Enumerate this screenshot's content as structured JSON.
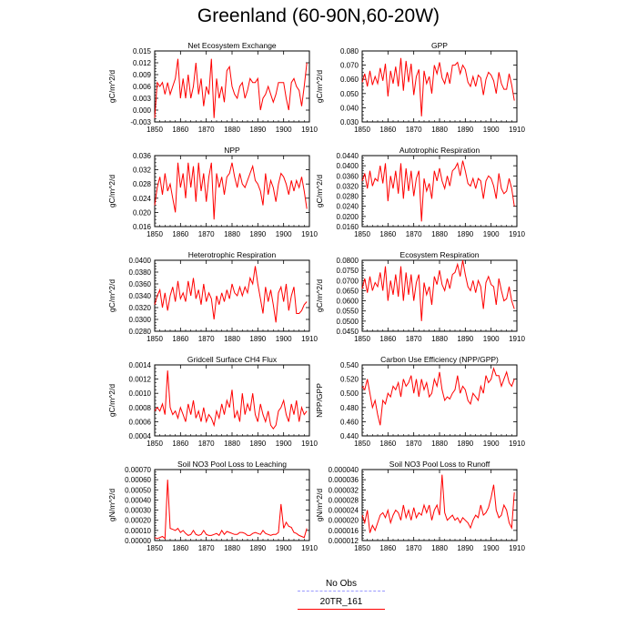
{
  "page": {
    "title": "Greenland (60-90N,60-20W)"
  },
  "legend": {
    "items": [
      {
        "label": "No Obs",
        "color": "#9999ff",
        "style": "dashed"
      },
      {
        "label": "20TR_161",
        "color": "#ff0000",
        "style": "solid"
      }
    ]
  },
  "chart_data": [
    {
      "type": "line",
      "title": "Net Ecosystem Exchange",
      "ylabel": "gC/m^2/d",
      "xlabel": "",
      "xlim": [
        1850,
        1910
      ],
      "ylim": [
        -0.003,
        0.015
      ],
      "grid": false,
      "yticks": [
        "-0.003",
        "0.000",
        "0.003",
        "0.006",
        "0.009",
        "0.012",
        "0.015"
      ],
      "xticks": [
        "1850",
        "1860",
        "1870",
        "1880",
        "1890",
        "1900",
        "1910"
      ],
      "series": [
        {
          "color": "#ff0000",
          "x_start": 1850,
          "x_step": 1,
          "values": [
            -0.002,
            0.007,
            0.006,
            0.007,
            0.004,
            0.007,
            0.004,
            0.006,
            0.008,
            0.013,
            0.003,
            0.008,
            0.003,
            0.009,
            0.003,
            0.006,
            0.012,
            0.004,
            0.008,
            0.001,
            0.006,
            0.004,
            0.013,
            -0.002,
            0.008,
            0.003,
            0.006,
            0.002,
            0.01,
            0.011,
            0.006,
            0.004,
            0.003,
            0.006,
            0.007,
            0.003,
            0.005,
            0.008,
            0.007,
            0.007,
            0.008,
            0.0,
            0.003,
            0.004,
            0.006,
            0.004,
            0.002,
            0.004,
            0.007,
            0.007,
            0.007,
            0.003,
            0.0,
            0.007,
            0.008,
            0.006,
            0.005,
            0.001,
            0.006,
            0.012
          ]
        }
      ]
    },
    {
      "type": "line",
      "title": "GPP",
      "ylabel": "gC/m^2/d",
      "xlabel": "",
      "xlim": [
        1850,
        1910
      ],
      "ylim": [
        0.03,
        0.08
      ],
      "grid": false,
      "yticks": [
        "0.030",
        "0.040",
        "0.050",
        "0.060",
        "0.070",
        "0.080"
      ],
      "xticks": [
        "1850",
        "1860",
        "1870",
        "1880",
        "1890",
        "1900",
        "1910"
      ],
      "series": [
        {
          "color": "#ff0000",
          "x_start": 1850,
          "x_step": 1,
          "values": [
            0.058,
            0.064,
            0.055,
            0.066,
            0.056,
            0.062,
            0.057,
            0.068,
            0.059,
            0.071,
            0.048,
            0.066,
            0.057,
            0.069,
            0.055,
            0.075,
            0.052,
            0.073,
            0.058,
            0.071,
            0.049,
            0.062,
            0.067,
            0.034,
            0.066,
            0.057,
            0.062,
            0.05,
            0.07,
            0.064,
            0.072,
            0.061,
            0.057,
            0.065,
            0.057,
            0.07,
            0.07,
            0.072,
            0.064,
            0.07,
            0.067,
            0.058,
            0.055,
            0.062,
            0.055,
            0.063,
            0.061,
            0.049,
            0.06,
            0.065,
            0.063,
            0.059,
            0.05,
            0.065,
            0.057,
            0.053,
            0.053,
            0.064,
            0.056,
            0.045
          ]
        }
      ]
    },
    {
      "type": "line",
      "title": "NPP",
      "ylabel": "gC/m^2/d",
      "xlabel": "",
      "xlim": [
        1850,
        1910
      ],
      "ylim": [
        0.016,
        0.036
      ],
      "grid": false,
      "yticks": [
        "0.016",
        "0.020",
        "0.024",
        "0.028",
        "0.032",
        "0.036"
      ],
      "xticks": [
        "1850",
        "1860",
        "1870",
        "1880",
        "1890",
        "1900",
        "1910"
      ],
      "series": [
        {
          "color": "#ff0000",
          "x_start": 1850,
          "x_step": 1,
          "values": [
            0.022,
            0.027,
            0.03,
            0.025,
            0.031,
            0.026,
            0.028,
            0.024,
            0.02,
            0.034,
            0.027,
            0.031,
            0.024,
            0.034,
            0.027,
            0.033,
            0.023,
            0.034,
            0.026,
            0.031,
            0.023,
            0.03,
            0.034,
            0.018,
            0.031,
            0.027,
            0.03,
            0.025,
            0.03,
            0.031,
            0.034,
            0.03,
            0.027,
            0.031,
            0.028,
            0.027,
            0.029,
            0.031,
            0.033,
            0.029,
            0.028,
            0.026,
            0.022,
            0.031,
            0.025,
            0.029,
            0.027,
            0.023,
            0.028,
            0.031,
            0.03,
            0.028,
            0.025,
            0.029,
            0.026,
            0.029,
            0.027,
            0.03,
            0.026,
            0.021
          ]
        }
      ]
    },
    {
      "type": "line",
      "title": "Autotrophic Respiration",
      "ylabel": "gC/m^2/d",
      "xlabel": "",
      "xlim": [
        1850,
        1910
      ],
      "ylim": [
        0.016,
        0.044
      ],
      "grid": false,
      "yticks": [
        "0.0160",
        "0.0200",
        "0.0240",
        "0.0280",
        "0.0320",
        "0.0360",
        "0.0400",
        "0.0440"
      ],
      "xticks": [
        "1850",
        "1860",
        "1870",
        "1880",
        "1890",
        "1900",
        "1910"
      ],
      "series": [
        {
          "color": "#ff0000",
          "x_start": 1850,
          "x_step": 1,
          "values": [
            0.034,
            0.037,
            0.031,
            0.038,
            0.032,
            0.035,
            0.034,
            0.04,
            0.033,
            0.041,
            0.026,
            0.036,
            0.031,
            0.038,
            0.029,
            0.041,
            0.027,
            0.039,
            0.03,
            0.038,
            0.028,
            0.035,
            0.038,
            0.018,
            0.035,
            0.03,
            0.033,
            0.027,
            0.038,
            0.034,
            0.039,
            0.034,
            0.031,
            0.036,
            0.032,
            0.038,
            0.039,
            0.041,
            0.036,
            0.042,
            0.038,
            0.033,
            0.032,
            0.035,
            0.031,
            0.035,
            0.034,
            0.027,
            0.034,
            0.036,
            0.035,
            0.032,
            0.027,
            0.037,
            0.031,
            0.029,
            0.03,
            0.035,
            0.031,
            0.024
          ]
        }
      ]
    },
    {
      "type": "line",
      "title": "Heterotrophic Respiration",
      "ylabel": "gC/m^2/d",
      "xlabel": "",
      "xlim": [
        1850,
        1910
      ],
      "ylim": [
        0.028,
        0.04
      ],
      "grid": false,
      "yticks": [
        "0.0280",
        "0.0300",
        "0.0320",
        "0.0340",
        "0.0360",
        "0.0380",
        "0.0400"
      ],
      "xticks": [
        "1850",
        "1860",
        "1870",
        "1880",
        "1890",
        "1900",
        "1910"
      ],
      "series": [
        {
          "color": "#ff0000",
          "x_start": 1850,
          "x_step": 1,
          "values": [
            0.0325,
            0.034,
            0.035,
            0.032,
            0.0345,
            0.0315,
            0.034,
            0.0355,
            0.033,
            0.0365,
            0.0335,
            0.0345,
            0.033,
            0.0365,
            0.034,
            0.037,
            0.0335,
            0.035,
            0.0325,
            0.036,
            0.033,
            0.0345,
            0.0335,
            0.03,
            0.034,
            0.0325,
            0.0345,
            0.033,
            0.035,
            0.0335,
            0.036,
            0.0345,
            0.034,
            0.0355,
            0.034,
            0.0355,
            0.0345,
            0.037,
            0.036,
            0.039,
            0.036,
            0.0335,
            0.031,
            0.0355,
            0.033,
            0.035,
            0.0325,
            0.0295,
            0.0345,
            0.0355,
            0.033,
            0.036,
            0.0315,
            0.034,
            0.0355,
            0.031,
            0.031,
            0.0315,
            0.0325,
            0.033
          ]
        }
      ]
    },
    {
      "type": "line",
      "title": "Ecosystem Respiration",
      "ylabel": "gC/m^2/d",
      "xlabel": "",
      "xlim": [
        1850,
        1910
      ],
      "ylim": [
        0.045,
        0.08
      ],
      "grid": false,
      "yticks": [
        "0.0450",
        "0.0500",
        "0.0550",
        "0.0600",
        "0.0650",
        "0.0700",
        "0.0750",
        "0.0800"
      ],
      "xticks": [
        "1850",
        "1860",
        "1870",
        "1880",
        "1890",
        "1900",
        "1910"
      ],
      "series": [
        {
          "color": "#ff0000",
          "x_start": 1850,
          "x_step": 1,
          "values": [
            0.066,
            0.071,
            0.064,
            0.072,
            0.065,
            0.069,
            0.067,
            0.074,
            0.065,
            0.077,
            0.06,
            0.07,
            0.063,
            0.073,
            0.062,
            0.077,
            0.06,
            0.074,
            0.063,
            0.073,
            0.06,
            0.069,
            0.073,
            0.05,
            0.069,
            0.063,
            0.067,
            0.058,
            0.072,
            0.068,
            0.075,
            0.068,
            0.065,
            0.071,
            0.066,
            0.073,
            0.074,
            0.078,
            0.072,
            0.08,
            0.073,
            0.067,
            0.065,
            0.07,
            0.064,
            0.07,
            0.067,
            0.056,
            0.069,
            0.072,
            0.068,
            0.067,
            0.058,
            0.071,
            0.065,
            0.06,
            0.061,
            0.067,
            0.06,
            0.056
          ]
        }
      ]
    },
    {
      "type": "line",
      "title": "Gridcell Surface CH4 Flux",
      "ylabel": "gC/m^2/d",
      "xlabel": "",
      "xlim": [
        1850,
        1910
      ],
      "ylim": [
        0.0004,
        0.0014
      ],
      "grid": false,
      "yticks": [
        "0.0004",
        "0.0006",
        "0.0008",
        "0.0010",
        "0.0012",
        "0.0014"
      ],
      "xticks": [
        "1850",
        "1860",
        "1870",
        "1880",
        "1890",
        "1900",
        "1910"
      ],
      "series": [
        {
          "color": "#ff0000",
          "x_start": 1850,
          "x_step": 1,
          "values": [
            0.00075,
            0.0008,
            0.00075,
            0.00085,
            0.0007,
            0.00132,
            0.0008,
            0.0007,
            0.00075,
            0.00065,
            0.0008,
            0.0007,
            0.0006,
            0.00085,
            0.0007,
            0.0009,
            0.00065,
            0.00075,
            0.0006,
            0.0008,
            0.0006,
            0.0007,
            0.00065,
            0.00055,
            0.00075,
            0.00065,
            0.00085,
            0.0007,
            0.0009,
            0.0008,
            0.00105,
            0.00065,
            0.00075,
            0.0006,
            0.001,
            0.0007,
            0.00085,
            0.00075,
            0.001,
            0.0007,
            0.0006,
            0.00085,
            0.0007,
            0.0006,
            0.00075,
            0.00055,
            0.0005,
            0.00055,
            0.00075,
            0.0008,
            0.0009,
            0.0007,
            0.0006,
            0.00085,
            0.0007,
            0.0009,
            0.0006,
            0.0008,
            0.0007,
            0.00075
          ]
        }
      ]
    },
    {
      "type": "line",
      "title": "Carbon Use Efficiency (NPP/GPP)",
      "ylabel": "NPP/GPP",
      "xlabel": "",
      "xlim": [
        1850,
        1910
      ],
      "ylim": [
        0.44,
        0.54
      ],
      "grid": false,
      "yticks": [
        "0.440",
        "0.460",
        "0.480",
        "0.500",
        "0.520",
        "0.540"
      ],
      "xticks": [
        "1850",
        "1860",
        "1870",
        "1880",
        "1890",
        "1900",
        "1910"
      ],
      "series": [
        {
          "color": "#ff0000",
          "x_start": 1850,
          "x_step": 1,
          "values": [
            0.51,
            0.505,
            0.52,
            0.5,
            0.48,
            0.49,
            0.47,
            0.455,
            0.49,
            0.485,
            0.5,
            0.495,
            0.51,
            0.505,
            0.515,
            0.495,
            0.52,
            0.51,
            0.515,
            0.525,
            0.5,
            0.52,
            0.495,
            0.52,
            0.505,
            0.515,
            0.495,
            0.5,
            0.52,
            0.51,
            0.53,
            0.505,
            0.49,
            0.495,
            0.492,
            0.5,
            0.505,
            0.525,
            0.5,
            0.51,
            0.505,
            0.49,
            0.485,
            0.5,
            0.495,
            0.49,
            0.51,
            0.5,
            0.525,
            0.515,
            0.52,
            0.535,
            0.525,
            0.525,
            0.51,
            0.52,
            0.53,
            0.515,
            0.51,
            0.52
          ]
        }
      ]
    },
    {
      "type": "line",
      "title": "Soil NO3 Pool Loss to Leaching",
      "ylabel": "gN/m^2/d",
      "xlabel": "",
      "xlim": [
        1850,
        1910
      ],
      "ylim": [
        0.0,
        0.0007
      ],
      "grid": false,
      "yticks": [
        "0.00000",
        "0.00010",
        "0.00020",
        "0.00030",
        "0.00040",
        "0.00050",
        "0.00060",
        "0.00070"
      ],
      "xticks": [
        "1850",
        "1860",
        "1870",
        "1880",
        "1890",
        "1900",
        "1910"
      ],
      "series": [
        {
          "color": "#ff0000",
          "x_start": 1850,
          "x_step": 1,
          "values": [
            3e-05,
            2e-05,
            3e-05,
            4e-05,
            2e-05,
            0.0006,
            0.00012,
            0.00011,
            0.0001,
            0.00012,
            8e-05,
            0.0001,
            7e-05,
            5e-05,
            6e-05,
            0.0001,
            6e-05,
            5e-05,
            6e-05,
            0.0001,
            6e-05,
            5e-05,
            5e-05,
            6e-05,
            7e-05,
            5e-05,
            0.0001,
            6e-05,
            9e-05,
            8e-05,
            7e-05,
            6e-05,
            6e-05,
            8e-05,
            8e-05,
            7e-05,
            5e-05,
            5e-05,
            7e-05,
            8e-05,
            7e-05,
            6e-05,
            0.0001,
            7e-05,
            6e-05,
            5e-05,
            6e-05,
            6e-05,
            8e-05,
            0.00036,
            0.00012,
            0.00018,
            0.00014,
            0.00013,
            8e-05,
            7e-05,
            5e-05,
            4e-05,
            3e-05,
            0.00012
          ]
        }
      ]
    },
    {
      "type": "line",
      "title": "Soil NO3 Pool Loss to Runoff",
      "ylabel": "gN/m^2/d",
      "xlabel": "",
      "xlim": [
        1850,
        1910
      ],
      "ylim": [
        1.2e-05,
        4e-05
      ],
      "grid": false,
      "yticks": [
        "0.000012",
        "0.000016",
        "0.000020",
        "0.000024",
        "0.000028",
        "0.000032",
        "0.000036",
        "0.000040"
      ],
      "xticks": [
        "1850",
        "1860",
        "1870",
        "1880",
        "1890",
        "1900",
        "1910"
      ],
      "series": [
        {
          "color": "#ff0000",
          "x_start": 1850,
          "x_step": 1,
          "values": [
            2.2e-05,
            1.9e-05,
            2.4e-05,
            1.5e-05,
            1.8e-05,
            1.6e-05,
            1.9e-05,
            2.2e-05,
            2.3e-05,
            2.1e-05,
            2.4e-05,
            1.9e-05,
            2.2e-05,
            2.4e-05,
            2.3e-05,
            2e-05,
            2.6e-05,
            2.1e-05,
            2.4e-05,
            2e-05,
            2.5e-05,
            2.1e-05,
            2.3e-05,
            2.2e-05,
            2.6e-05,
            2.3e-05,
            2.6e-05,
            2e-05,
            2.4e-05,
            2.6e-05,
            2.2e-05,
            3.8e-05,
            2.3e-05,
            2e-05,
            2.1e-05,
            2.2e-05,
            2e-05,
            2.1e-05,
            1.9e-05,
            2.1e-05,
            2e-05,
            1.9e-05,
            1.7e-05,
            2e-05,
            2.2e-05,
            2.1e-05,
            2.6e-05,
            2.2e-05,
            2.3e-05,
            2.5e-05,
            2.9e-05,
            3.4e-05,
            2.4e-05,
            2.1e-05,
            2.2e-05,
            2.6e-05,
            2.4e-05,
            1.9e-05,
            1.7e-05,
            3.1e-05
          ]
        }
      ]
    }
  ]
}
